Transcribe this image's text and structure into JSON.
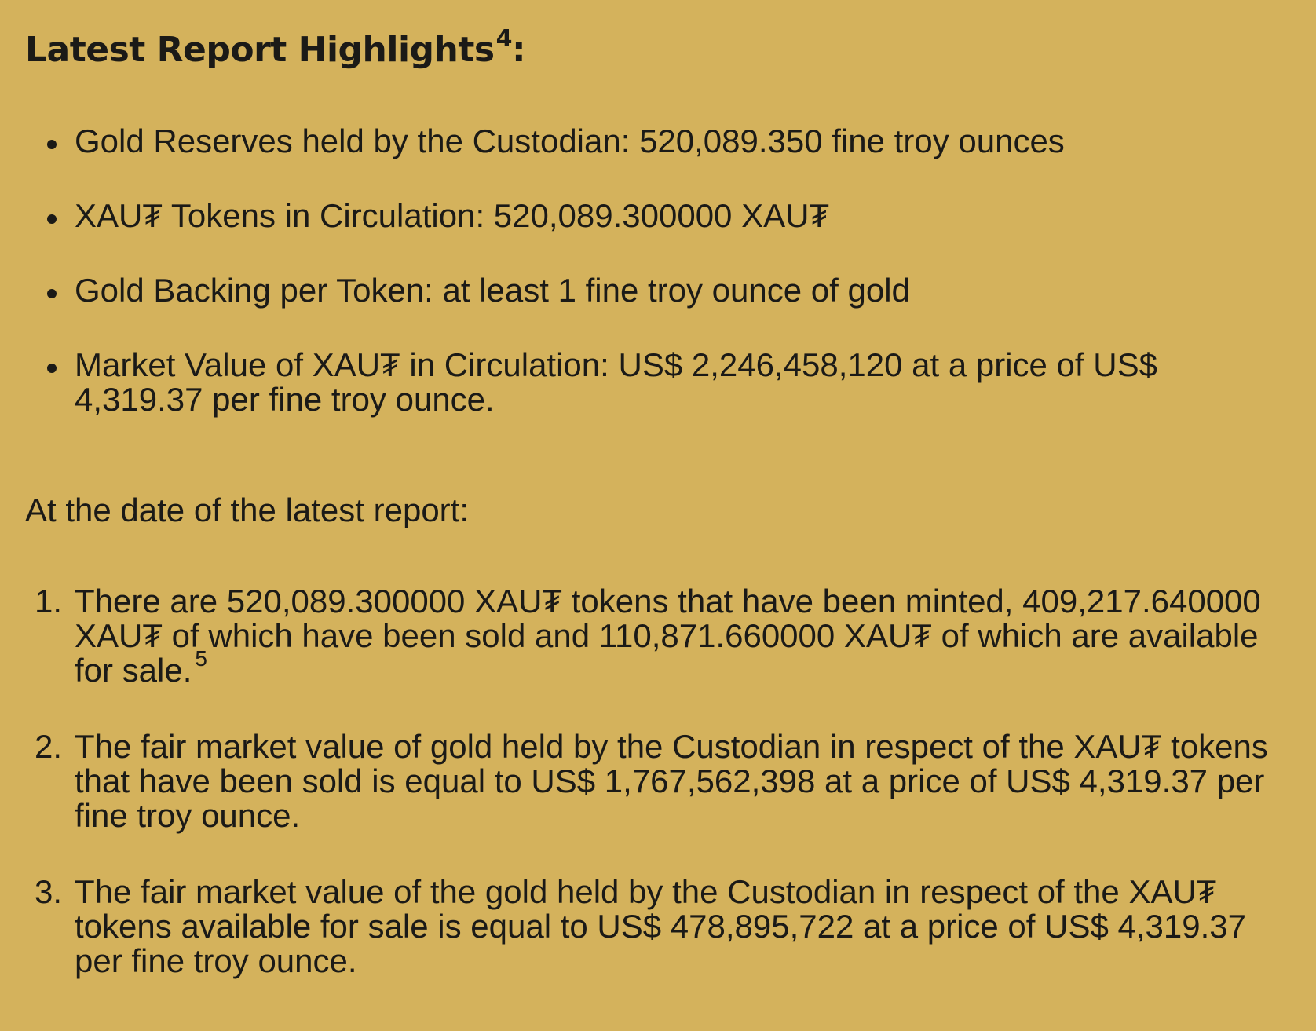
{
  "heading": {
    "title": "Latest Report Highlights",
    "footnote": "4",
    "suffix": ":"
  },
  "highlights": [
    "Gold Reserves held by the Custodian: 520,089.350 fine troy ounces",
    "XAU₮ Tokens in Circulation: 520,089.300000 XAU₮",
    "Gold Backing per Token: at least 1 fine troy ounce of gold",
    "Market Value of XAU₮ in Circulation: US$ 2,246,458,120 at a price of US$ 4,319.37 per fine troy ounce."
  ],
  "intro": "At the date of the latest report:",
  "details": [
    {
      "number": "1.",
      "text": "There are 520,089.300000 XAU₮ tokens that have been minted, 409,217.640000 XAU₮ of which have been sold and 110,871.660000 XAU₮ of which are available for sale.",
      "footnote": "5"
    },
    {
      "number": "2.",
      "text": "The fair market value of gold held by the Custodian in respect of the XAU₮ tokens that have been sold is equal to US$ 1,767,562,398 at a price of US$ 4,319.37 per fine troy ounce."
    },
    {
      "number": "3.",
      "text": "The fair market value of the gold held by the Custodian in respect of the XAU₮ tokens available for sale is equal to US$ 478,895,722 at a price of US$ 4,319.37 per fine troy ounce."
    }
  ]
}
